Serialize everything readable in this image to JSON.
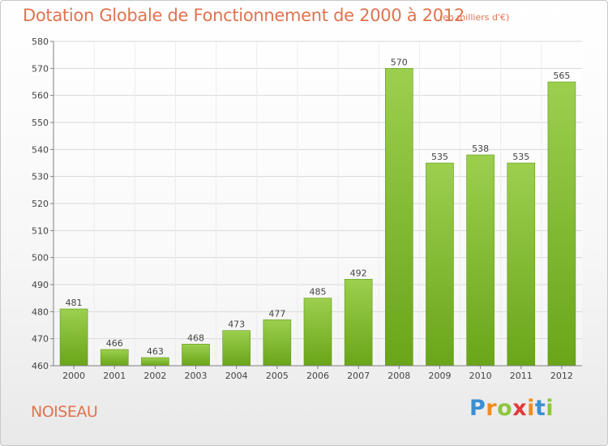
{
  "chart_data": {
    "type": "bar",
    "title": "Dotation Globale de Fonctionnement de 2000 à 2012",
    "subtitle": "(en milliers d'€)",
    "categories": [
      "2000",
      "2001",
      "2002",
      "2003",
      "2004",
      "2005",
      "2006",
      "2007",
      "2008",
      "2009",
      "2010",
      "2011",
      "2012"
    ],
    "values": [
      481,
      466,
      463,
      468,
      473,
      477,
      485,
      492,
      570,
      535,
      538,
      535,
      565
    ],
    "ylim": [
      460,
      580
    ],
    "yticks": [
      460,
      470,
      480,
      490,
      500,
      510,
      520,
      530,
      540,
      550,
      560,
      570,
      580
    ],
    "grid": true,
    "bar_color_top": "#9ccf4e",
    "bar_color_bottom": "#6aa519",
    "xlabel": "",
    "ylabel": ""
  },
  "commune": "NOISEAU",
  "logo": {
    "letters": [
      "P",
      "r",
      "o",
      "x",
      "i",
      "t",
      "i"
    ],
    "colors": [
      "#3a8fd1",
      "#f28c1c",
      "#8cc63f",
      "#e03a3a",
      "#f28c1c",
      "#3a8fd1",
      "#8cc63f"
    ]
  },
  "colors": {
    "accent": "#e0734f",
    "axis": "#808080",
    "grid": "#d9d9d9"
  }
}
